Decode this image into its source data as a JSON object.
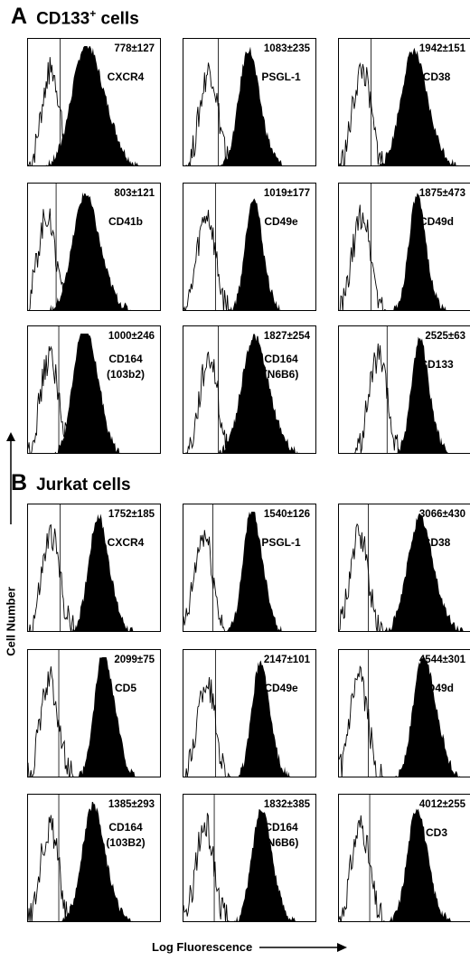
{
  "panels": [
    {
      "letter": "A",
      "title": "CD133",
      "title_sup": "+",
      "title_suffix": " cells",
      "plots": [
        {
          "value": "778±127",
          "label": [
            "CXCR4"
          ],
          "neg_peak": 0.18,
          "pos_peak": 0.42,
          "pos_width": 0.1,
          "pos_tail": 0.1
        },
        {
          "value": "1083±235",
          "label": [
            "PSGL-1"
          ],
          "neg_peak": 0.2,
          "pos_peak": 0.48,
          "pos_width": 0.07,
          "pos_tail": 0.06
        },
        {
          "value": "1942±151",
          "label": [
            "CD38"
          ],
          "neg_peak": 0.18,
          "pos_peak": 0.55,
          "pos_width": 0.09,
          "pos_tail": 0.05
        },
        {
          "value": "803±121",
          "label": [
            "CD41b"
          ],
          "neg_peak": 0.15,
          "pos_peak": 0.42,
          "pos_width": 0.09,
          "pos_tail": 0.06
        },
        {
          "value": "1019±177",
          "label": [
            "CD49e"
          ],
          "neg_peak": 0.18,
          "pos_peak": 0.52,
          "pos_width": 0.06,
          "pos_tail": 0.04
        },
        {
          "value": "1875±473",
          "label": [
            "CD49d"
          ],
          "neg_peak": 0.18,
          "pos_peak": 0.58,
          "pos_width": 0.06,
          "pos_tail": 0.04
        },
        {
          "value": "1000±246",
          "label": [
            "CD164",
            "(103b2)"
          ],
          "neg_peak": 0.17,
          "pos_peak": 0.4,
          "pos_width": 0.07,
          "pos_tail": 0.14
        },
        {
          "value": "1827±254",
          "label": [
            "CD164",
            "(N6B6)"
          ],
          "neg_peak": 0.2,
          "pos_peak": 0.52,
          "pos_width": 0.09,
          "pos_tail": 0.06
        },
        {
          "value": "2525±63",
          "label": [
            "CD133"
          ],
          "neg_peak": 0.3,
          "pos_peak": 0.6,
          "pos_width": 0.06,
          "pos_tail": 0.05
        }
      ]
    },
    {
      "letter": "B",
      "title": "Jurkat cells",
      "title_sup": "",
      "title_suffix": "",
      "plots": [
        {
          "value": "1752±185",
          "label": [
            "CXCR4"
          ],
          "neg_peak": 0.18,
          "pos_peak": 0.52,
          "pos_width": 0.07,
          "pos_tail": 0.05
        },
        {
          "value": "1540±126",
          "label": [
            "PSGL-1"
          ],
          "neg_peak": 0.16,
          "pos_peak": 0.5,
          "pos_width": 0.06,
          "pos_tail": 0.1
        },
        {
          "value": "3066±430",
          "label": [
            "CD38"
          ],
          "neg_peak": 0.16,
          "pos_peak": 0.6,
          "pos_width": 0.09,
          "pos_tail": 0.04
        },
        {
          "value": "2099±75",
          "label": [
            "CD5"
          ],
          "neg_peak": 0.17,
          "pos_peak": 0.55,
          "pos_width": 0.06,
          "pos_tail": 0.12
        },
        {
          "value": "2147±101",
          "label": [
            "CD49e"
          ],
          "neg_peak": 0.18,
          "pos_peak": 0.57,
          "pos_width": 0.06,
          "pos_tail": 0.05
        },
        {
          "value": "4544±301",
          "label": [
            "CD49d"
          ],
          "neg_peak": 0.16,
          "pos_peak": 0.62,
          "pos_width": 0.07,
          "pos_tail": 0.1
        },
        {
          "value": "1385±293",
          "label": [
            "CD164",
            "(103B2)"
          ],
          "neg_peak": 0.17,
          "pos_peak": 0.48,
          "pos_width": 0.08,
          "pos_tail": 0.05
        },
        {
          "value": "1832±385",
          "label": [
            "CD164",
            "(N6B6)"
          ],
          "neg_peak": 0.17,
          "pos_peak": 0.58,
          "pos_width": 0.07,
          "pos_tail": 0.04
        },
        {
          "value": "4012±255",
          "label": [
            "CD3"
          ],
          "neg_peak": 0.17,
          "pos_peak": 0.58,
          "pos_width": 0.07,
          "pos_tail": 0.04
        }
      ]
    }
  ],
  "axis": {
    "ylabel": "Cell Number",
    "xlabel": "Log Fluorescence"
  },
  "chart_data": {
    "type": "histogram",
    "description_note": "",
    "series_colors": {
      "isotype_control": "#ffffff",
      "antibody_stain": "#000000"
    }
  }
}
